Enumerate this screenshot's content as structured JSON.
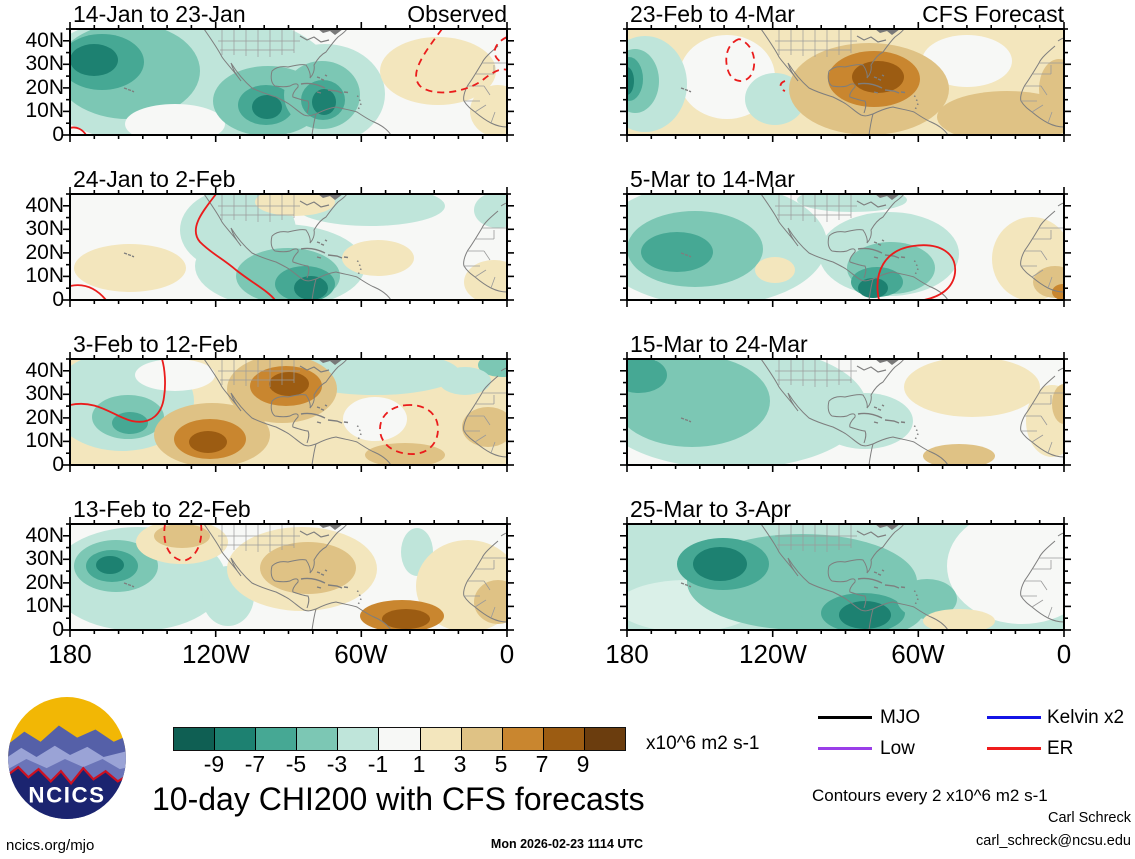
{
  "panels": [
    {
      "title": "14-Jan to 23-Jan",
      "corner": "Observed"
    },
    {
      "title": "23-Feb to 4-Mar",
      "corner": "CFS Forecast"
    },
    {
      "title": "24-Jan to 2-Feb",
      "corner": ""
    },
    {
      "title": "5-Mar to 14-Mar",
      "corner": ""
    },
    {
      "title": "3-Feb to 12-Feb",
      "corner": ""
    },
    {
      "title": "15-Mar to 24-Mar",
      "corner": ""
    },
    {
      "title": "13-Feb to 22-Feb",
      "corner": ""
    },
    {
      "title": "25-Mar to 3-Apr",
      "corner": ""
    }
  ],
  "axes": {
    "y_labels": [
      "40N",
      "30N",
      "20N",
      "10N",
      "0"
    ],
    "x_labels": [
      "180",
      "120W",
      "60W",
      "0"
    ]
  },
  "colorbar": {
    "tick_labels": [
      "-9",
      "-7",
      "-5",
      "-3",
      "-1",
      "1",
      "3",
      "5",
      "7",
      "9"
    ],
    "units": "x10^6 m2 s-1",
    "colors": [
      "#0f5f53",
      "#1d8171",
      "#46a894",
      "#7cc7b4",
      "#bfe5da",
      "#f7f8f6",
      "#f3e6bd",
      "#dfc285",
      "#c9862f",
      "#9c5c12",
      "#6b3d0e"
    ]
  },
  "legend": {
    "items": [
      {
        "label": "MJO",
        "color": "#000000"
      },
      {
        "label": "Kelvin x2",
        "color": "#1414e6"
      },
      {
        "label": "Low",
        "color": "#9a3ee8"
      },
      {
        "label": "ER",
        "color": "#ef1c1c"
      }
    ]
  },
  "footer": {
    "title": "10-day CHI200 with CFS forecasts",
    "contour_note": "Contours every 2 x10^6 m2 s-1",
    "credit_name": "Carl Schreck",
    "credit_email": "carl_schreck@ncsu.edu",
    "site": "ncics.org/mjo",
    "timestamp": "Mon 2026-02-23 1114 UTC",
    "logo_text": "NCICS"
  },
  "chart_data": {
    "type": "heatmap",
    "title": "10-day CHI200 with CFS forecasts",
    "variable": "200-hPa velocity potential (CHI200) anomaly",
    "units": "x10^6 m2 s-1",
    "contour_interval": "2 x10^6 m2 s-1",
    "columns": [
      "Observed",
      "CFS Forecast"
    ],
    "x_axis": {
      "label_ticks": [
        "180",
        "120W",
        "60W",
        "0"
      ],
      "range_deg_west": [
        180,
        0
      ]
    },
    "y_axis": {
      "label_ticks": [
        "40N",
        "30N",
        "20N",
        "10N",
        "0"
      ],
      "range_deg_north": [
        0,
        45
      ]
    },
    "colorbar_levels": [
      -9,
      -7,
      -5,
      -3,
      -1,
      1,
      3,
      5,
      7,
      9
    ],
    "wave_contours": [
      "MJO",
      "Kelvin x2",
      "Low",
      "ER"
    ],
    "panels": [
      {
        "period": "14-Jan to 23-Jan",
        "source": "Observed",
        "summary": "Negative (teal) anomalies -1 to -7 over E Pacific, Mexico and Caribbean; weak +1 to +3 over tropical Atlantic/W Africa with dashed red ER contour."
      },
      {
        "period": "23-Feb to 4-Mar",
        "source": "CFS Forecast",
        "summary": "Negative -1 to -7 near the date line; +1 to +7 centered over Mexico/SW US; +1 to +5 across Atlantic into Africa; small dashed ER circles in NE Pacific."
      },
      {
        "period": "24-Jan to 2-Feb",
        "source": "Observed",
        "summary": "Weak +1 to +3 W Pacific; -1 to -7 from E Pacific across Central America with max near Panama; solid red ER contours through E Pacific."
      },
      {
        "period": "5-Mar to 14-Mar",
        "source": "CFS Forecast",
        "summary": "-1 to -5 central N Pacific; -1 to -7 Caribbean/NW South America inside solid red ER oval; +1 to +5 E Atlantic and W Africa."
      },
      {
        "period": "3-Feb to 12-Feb",
        "source": "Observed",
        "summary": "-1 to -5 near date line bounded by solid red contour; +3 to +9 near 120W and over E North America; dashed red oval over Caribbean."
      },
      {
        "period": "15-Mar to 24-Mar",
        "source": "CFS Forecast",
        "summary": "-1 to -5 across east/central Pacific; weak -1 Caribbean; +1 to +3 subtropical Atlantic and W Africa."
      },
      {
        "period": "13-Feb to 22-Feb",
        "source": "Observed",
        "summary": "-1 to -7 near date line; dashed red contour NE Pacific; +1 to +5 over Mexico, Gulf and tropical Atlantic; +5 to +7 central Atlantic."
      },
      {
        "period": "25-Mar to 3-Apr",
        "source": "CFS Forecast",
        "summary": "-1 to -7 teal across entire E Pacific and Caribbean with maxima near 150W and Panama; near-neutral Atlantic."
      }
    ]
  }
}
